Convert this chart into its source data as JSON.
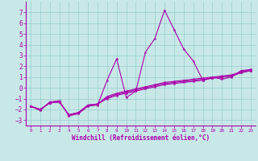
{
  "xlabel": "Windchill (Refroidissement éolien,°C)",
  "bg_color": "#c8e8e8",
  "line_color": "#aa00aa",
  "grid_color": "#99cccc",
  "xlim": [
    -0.5,
    23.5
  ],
  "ylim": [
    -3.5,
    8.0
  ],
  "yticks": [
    -3,
    -2,
    -1,
    0,
    1,
    2,
    3,
    4,
    5,
    6,
    7
  ],
  "xticks": [
    0,
    1,
    2,
    3,
    4,
    5,
    6,
    7,
    8,
    9,
    10,
    11,
    12,
    13,
    14,
    15,
    16,
    17,
    18,
    19,
    20,
    21,
    22,
    23
  ],
  "series": [
    [
      -1.7,
      -2.1,
      -1.3,
      -1.2,
      -2.6,
      -2.4,
      -1.7,
      -1.6,
      0.7,
      2.7,
      -0.9,
      -0.3,
      3.3,
      4.6,
      7.2,
      5.4,
      3.6,
      2.5,
      0.7,
      1.0,
      0.8,
      1.0,
      1.6,
      1.7
    ],
    [
      -1.7,
      -2.0,
      -1.4,
      -1.3,
      -2.5,
      -2.3,
      -1.6,
      -1.5,
      -0.8,
      -0.5,
      -0.3,
      -0.1,
      0.1,
      0.3,
      0.5,
      0.6,
      0.7,
      0.8,
      0.9,
      1.0,
      1.1,
      1.2,
      1.5,
      1.7
    ],
    [
      -1.7,
      -2.0,
      -1.4,
      -1.3,
      -2.5,
      -2.3,
      -1.6,
      -1.5,
      -0.9,
      -0.6,
      -0.4,
      -0.2,
      0.0,
      0.2,
      0.4,
      0.5,
      0.6,
      0.7,
      0.8,
      0.9,
      1.0,
      1.1,
      1.4,
      1.6
    ],
    [
      -1.7,
      -2.0,
      -1.4,
      -1.3,
      -2.5,
      -2.3,
      -1.6,
      -1.5,
      -1.0,
      -0.7,
      -0.5,
      -0.3,
      -0.1,
      0.1,
      0.3,
      0.4,
      0.5,
      0.6,
      0.7,
      0.9,
      1.0,
      1.1,
      1.4,
      1.6
    ]
  ]
}
